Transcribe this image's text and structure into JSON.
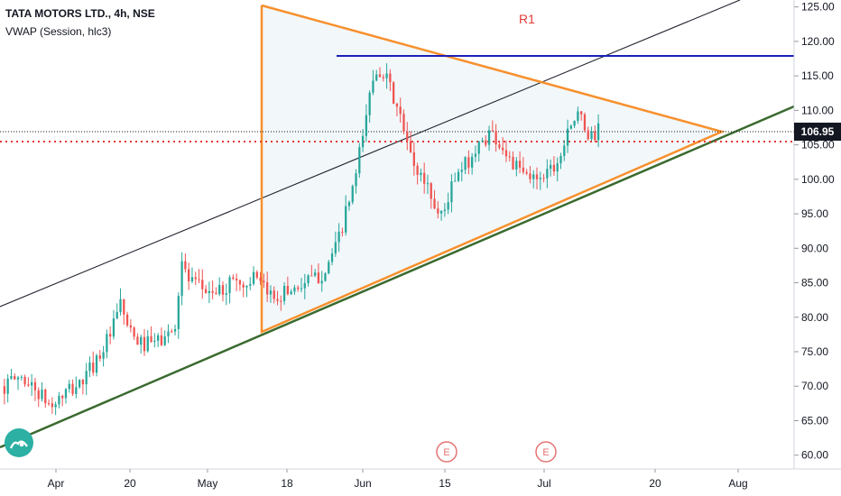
{
  "header": {
    "symbol": "TATA MOTORS LTD., 4h, NSE",
    "indicator": "VWAP (Session, hlc3)"
  },
  "price_label": "106.95",
  "annotation_label": "R1",
  "colors": {
    "up": "#26a69a",
    "down": "#ef5350",
    "triangle": "#f7902d",
    "triangle_fill": "#eaf2f6",
    "channel_upper": "#1e222d",
    "trend_support": "#3a6a2f",
    "resistance": "#1a1fb8",
    "current_price_line": "#131722",
    "dotted_red": "#e53935",
    "price_tag_bg": "#131722",
    "r1_text": "#e53935",
    "event_marker": "#e57373"
  },
  "chart_data": {
    "type": "candlestick",
    "title": "TATA MOTORS LTD., 4h, NSE",
    "indicator": "VWAP (Session, hlc3)",
    "ylim": [
      58,
      126
    ],
    "y_ticks": [
      "60.00",
      "65.00",
      "70.00",
      "75.00",
      "80.00",
      "85.00",
      "90.00",
      "95.00",
      "100.00",
      "105.00",
      "110.00",
      "115.00",
      "120.00",
      "125.00"
    ],
    "x_labels": [
      "Apr",
      "20",
      "May",
      "18",
      "Jun",
      "15",
      "Jul",
      "20",
      "Aug"
    ],
    "last_price": 106.95,
    "red_dotted_level": 105.5,
    "resistance_level": 118,
    "event_markers": [
      "E",
      "E"
    ],
    "price_path": [
      {
        "t": 0,
        "v": 70
      },
      {
        "t": 0.02,
        "v": 71.5
      },
      {
        "t": 0.04,
        "v": 69.5
      },
      {
        "t": 0.06,
        "v": 67
      },
      {
        "t": 0.08,
        "v": 69
      },
      {
        "t": 0.1,
        "v": 70.5
      },
      {
        "t": 0.12,
        "v": 74
      },
      {
        "t": 0.14,
        "v": 78
      },
      {
        "t": 0.15,
        "v": 82
      },
      {
        "t": 0.165,
        "v": 77
      },
      {
        "t": 0.18,
        "v": 76
      },
      {
        "t": 0.2,
        "v": 76.5
      },
      {
        "t": 0.22,
        "v": 78
      },
      {
        "t": 0.23,
        "v": 88
      },
      {
        "t": 0.24,
        "v": 85
      },
      {
        "t": 0.26,
        "v": 84
      },
      {
        "t": 0.28,
        "v": 83.5
      },
      {
        "t": 0.3,
        "v": 86
      },
      {
        "t": 0.31,
        "v": 84
      },
      {
        "t": 0.32,
        "v": 86
      },
      {
        "t": 0.335,
        "v": 84
      },
      {
        "t": 0.35,
        "v": 83
      },
      {
        "t": 0.37,
        "v": 84
      },
      {
        "t": 0.39,
        "v": 85
      },
      {
        "t": 0.41,
        "v": 86
      },
      {
        "t": 0.43,
        "v": 90
      },
      {
        "t": 0.44,
        "v": 94
      },
      {
        "t": 0.455,
        "v": 100
      },
      {
        "t": 0.47,
        "v": 110
      },
      {
        "t": 0.48,
        "v": 116
      },
      {
        "t": 0.49,
        "v": 116
      },
      {
        "t": 0.5,
        "v": 113
      },
      {
        "t": 0.51,
        "v": 110
      },
      {
        "t": 0.52,
        "v": 106
      },
      {
        "t": 0.53,
        "v": 102
      },
      {
        "t": 0.55,
        "v": 99
      },
      {
        "t": 0.56,
        "v": 95
      },
      {
        "t": 0.57,
        "v": 95.5
      },
      {
        "t": 0.58,
        "v": 99
      },
      {
        "t": 0.6,
        "v": 102.5
      },
      {
        "t": 0.61,
        "v": 104
      },
      {
        "t": 0.63,
        "v": 107
      },
      {
        "t": 0.65,
        "v": 104
      },
      {
        "t": 0.66,
        "v": 102
      },
      {
        "t": 0.68,
        "v": 100
      },
      {
        "t": 0.7,
        "v": 101
      },
      {
        "t": 0.72,
        "v": 103
      },
      {
        "t": 0.73,
        "v": 108
      },
      {
        "t": 0.745,
        "v": 109
      },
      {
        "t": 0.76,
        "v": 106
      },
      {
        "t": 0.77,
        "v": 107
      }
    ]
  }
}
